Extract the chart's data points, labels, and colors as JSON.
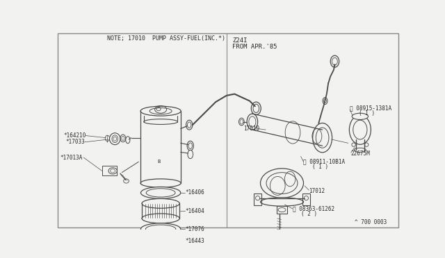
{
  "bg_color": "#f2f2f0",
  "line_color": "#4a4a4a",
  "text_color": "#2a2a2a",
  "border_color": "#888888",
  "fig_width": 6.4,
  "fig_height": 3.72,
  "title_left": "NOTE; 17010  PUMP ASSY-FUEL(INC.*)",
  "title_right_line1": "Z24I",
  "title_right_line2": "FROM APR.'85",
  "footer_text": "^ 700 0003"
}
